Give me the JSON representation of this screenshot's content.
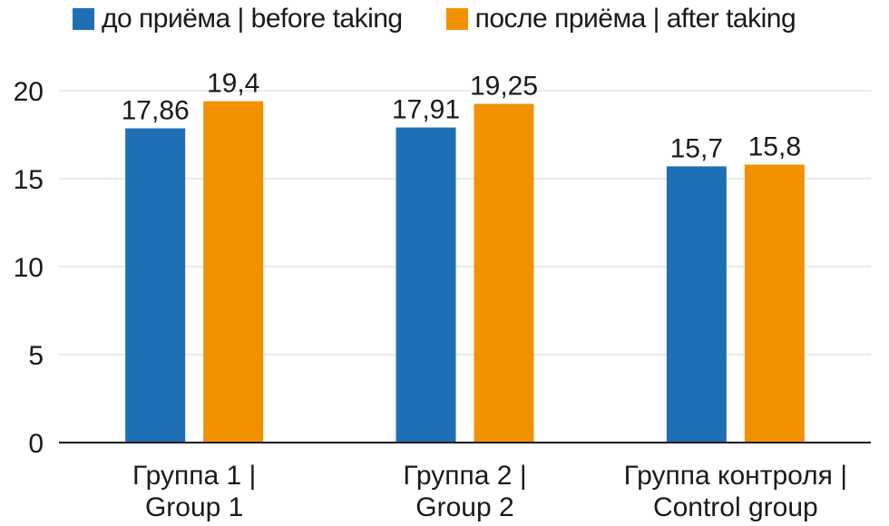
{
  "chart_data": {
    "type": "bar",
    "categories": [
      [
        "Группа 1 |",
        "Group 1"
      ],
      [
        "Группа 2 |",
        "Group 2"
      ],
      [
        "Группа контроля |",
        "Control group"
      ]
    ],
    "series": [
      {
        "name": "до приёма | before taking",
        "color": "#1f6fb6",
        "values": [
          17.86,
          17.91,
          15.7
        ],
        "labels": [
          "17,86",
          "17,91",
          "15,7"
        ]
      },
      {
        "name": "после приёма | after taking",
        "color": "#f29100",
        "values": [
          19.4,
          19.25,
          15.8
        ],
        "labels": [
          "19,4",
          "19,25",
          "15,8"
        ]
      }
    ],
    "ylim": [
      0,
      20
    ],
    "yticks": [
      0,
      5,
      10,
      15,
      20
    ],
    "grid": true,
    "legend_position": "top"
  }
}
